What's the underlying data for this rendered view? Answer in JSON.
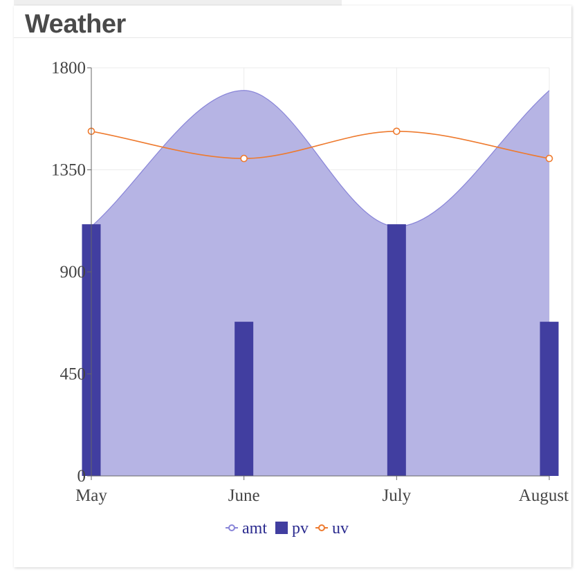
{
  "card": {
    "title": "Weather"
  },
  "chart_data": {
    "type": "composed",
    "categories": [
      "May",
      "June",
      "July",
      "August"
    ],
    "yticks": [
      0,
      450,
      900,
      1350,
      1800
    ],
    "ylim": [
      0,
      1800
    ],
    "grid": true,
    "legend_position": "bottom-center",
    "series": [
      {
        "name": "amt",
        "type": "area",
        "values": [
          1100,
          1700,
          1100,
          1700
        ],
        "color": "#8884d8",
        "fill": "#b6b4e4"
      },
      {
        "name": "pv",
        "type": "bar",
        "values": [
          1110,
          680,
          1110,
          680
        ],
        "color": "#413ea0"
      },
      {
        "name": "uv",
        "type": "line",
        "values": [
          1520,
          1400,
          1520,
          1400
        ],
        "color": "#ee7a2e"
      }
    ]
  }
}
